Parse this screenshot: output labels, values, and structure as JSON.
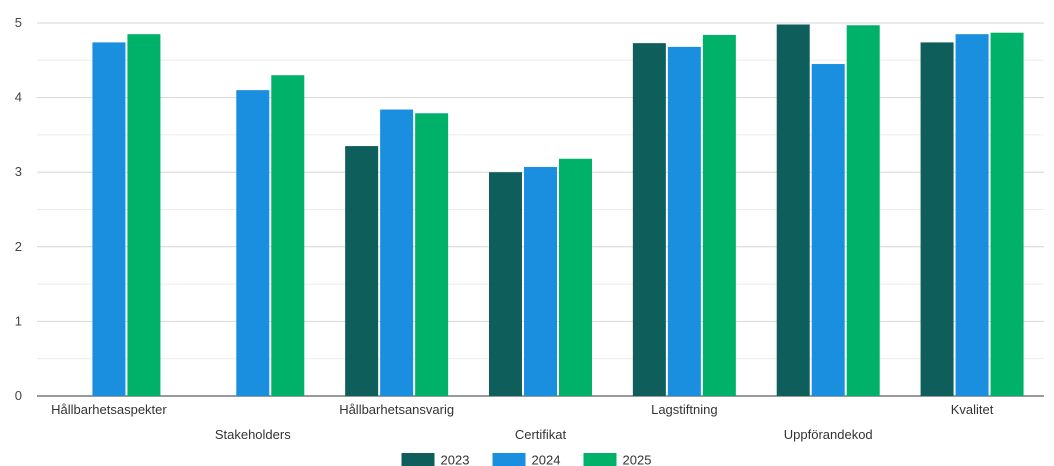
{
  "chart_data": {
    "type": "bar",
    "title": "",
    "xlabel": "",
    "ylabel": "",
    "ylim": [
      0,
      5
    ],
    "yticks": [
      "0",
      "1",
      "2",
      "3",
      "4",
      "5"
    ],
    "grid": true,
    "legend_position": "bottom",
    "categories": [
      "Hållbarhetsaspekter",
      "Stakeholders",
      "Hållbarhetsansvarig",
      "Certifikat",
      "Lagstiftning",
      "Uppförandekod",
      "Kvalitet"
    ],
    "series": [
      {
        "name": "2023",
        "color": "#0e5e5c",
        "values": [
          0,
          0,
          3.35,
          3.0,
          4.73,
          4.98,
          4.74
        ]
      },
      {
        "name": "2024",
        "color": "#1a8fe0",
        "values": [
          4.74,
          4.1,
          3.84,
          3.07,
          4.68,
          4.45,
          4.85
        ]
      },
      {
        "name": "2025",
        "color": "#00b16a",
        "values": [
          4.85,
          4.3,
          3.79,
          3.18,
          4.84,
          4.97,
          4.87
        ]
      }
    ]
  }
}
